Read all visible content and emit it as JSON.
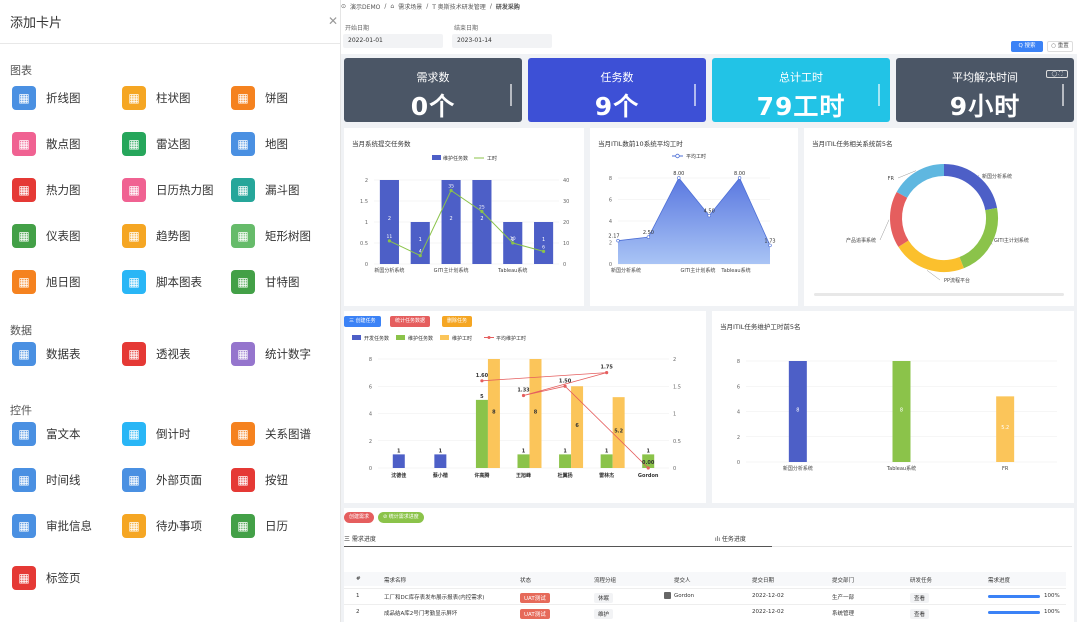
{
  "left_panel": {
    "title": "添加卡片",
    "sections": [
      {
        "title": "图表",
        "items": [
          {
            "label": "折线图",
            "icon": "line-chart-icon",
            "color": "#4a90e2"
          },
          {
            "label": "柱状图",
            "icon": "bar-chart-icon",
            "color": "#f5a623"
          },
          {
            "label": "饼图",
            "icon": "pie-chart-icon",
            "color": "#f5821f"
          },
          {
            "label": "散点图",
            "icon": "scatter-chart-icon",
            "color": "#f06292"
          },
          {
            "label": "雷达图",
            "icon": "radar-chart-icon",
            "color": "#26a65b"
          },
          {
            "label": "地图",
            "icon": "map-icon",
            "color": "#4a90e2"
          },
          {
            "label": "热力图",
            "icon": "heatmap-icon",
            "color": "#e53935"
          },
          {
            "label": "日历热力图",
            "icon": "calendar-heatmap-icon",
            "color": "#f06292"
          },
          {
            "label": "漏斗图",
            "icon": "funnel-icon",
            "color": "#26a69a"
          },
          {
            "label": "仪表图",
            "icon": "gauge-icon",
            "color": "#43a047"
          },
          {
            "label": "趋势图",
            "icon": "trend-icon",
            "color": "#f5a623"
          },
          {
            "label": "矩形树图",
            "icon": "treemap-icon",
            "color": "#66bb6a"
          },
          {
            "label": "旭日图",
            "icon": "sunburst-icon",
            "color": "#f5821f"
          },
          {
            "label": "脚本图表",
            "icon": "script-chart-icon",
            "color": "#29b6f6"
          },
          {
            "label": "甘特图",
            "icon": "gantt-icon",
            "color": "#43a047"
          }
        ]
      },
      {
        "title": "数据",
        "items": [
          {
            "label": "数据表",
            "icon": "data-table-icon",
            "color": "#4a90e2"
          },
          {
            "label": "透视表",
            "icon": "pivot-table-icon",
            "color": "#e53935"
          },
          {
            "label": "统计数字",
            "icon": "statistic-number-icon",
            "color": "#9575cd"
          }
        ]
      },
      {
        "title": "控件",
        "items": [
          {
            "label": "富文本",
            "icon": "rich-text-icon",
            "color": "#4a90e2"
          },
          {
            "label": "倒计时",
            "icon": "countdown-icon",
            "color": "#29b6f6"
          },
          {
            "label": "关系图谱",
            "icon": "relation-graph-icon",
            "color": "#f5821f"
          },
          {
            "label": "时间线",
            "icon": "timeline-icon",
            "color": "#4a90e2"
          },
          {
            "label": "外部页面",
            "icon": "external-page-icon",
            "color": "#4a90e2"
          },
          {
            "label": "按钮",
            "icon": "button-icon",
            "color": "#e53935"
          },
          {
            "label": "审批信息",
            "icon": "approval-icon",
            "color": "#4a90e2"
          },
          {
            "label": "待办事项",
            "icon": "todo-icon",
            "color": "#f5a623"
          },
          {
            "label": "日历",
            "icon": "calendar-icon",
            "color": "#43a047"
          },
          {
            "label": "标签页",
            "icon": "tabs-icon",
            "color": "#e53935"
          }
        ]
      }
    ]
  },
  "breadcrumb": [
    "演示DEMO",
    "需求场景",
    "T 奥斯技术研发管理",
    "研发采购"
  ],
  "filters": {
    "start_label": "开始日期",
    "start_value": "2022-01-01",
    "end_label": "结束日期",
    "end_value": "2023-01-14",
    "search_label": "Q 搜索",
    "reset_label": "○ 重置"
  },
  "stats": [
    {
      "title": "需求数",
      "value": "0个",
      "color": "#4b5666"
    },
    {
      "title": "任务数",
      "value": "9个",
      "color": "#3d50d6"
    },
    {
      "title": "总计工时",
      "value": "79工时",
      "color": "#22c3e6"
    },
    {
      "title": "平均解决时间",
      "value": "9小时",
      "color": "#4b5666"
    }
  ],
  "chart_data": [
    {
      "type": "bar",
      "title": "当月系统提交任务数",
      "categories": [
        "新国分析系统",
        "",
        "GITI主计划系统",
        "",
        "Tableau系统",
        ""
      ],
      "series": [
        {
          "name": "维护任务数",
          "values": [
            2,
            1,
            2,
            2,
            1,
            1
          ],
          "color": "#4d5fc7"
        },
        {
          "name": "工时",
          "values": [
            11,
            4,
            35,
            25,
            10,
            6
          ],
          "color": "#8bc34a",
          "axis": "right"
        }
      ],
      "ylim": [
        0,
        2
      ],
      "y2lim": [
        0,
        40
      ],
      "bar_labels": [
        "2",
        "1",
        "2",
        "2",
        "1",
        "1"
      ],
      "line_labels": [
        "11",
        "4",
        "35",
        "25",
        "10",
        "6"
      ]
    },
    {
      "type": "area",
      "title": "当月ITIL数前10系统平均工时",
      "legend": "平均工时",
      "categories": [
        "新国分析系统",
        "GITI主计划系统",
        "Tableau系统"
      ],
      "x_points": [
        "",
        "",
        "",
        "",
        "",
        ""
      ],
      "values": [
        2.17,
        2.5,
        8.0,
        4.5,
        8.0,
        1.73
      ],
      "labels": [
        "2.17",
        "2.50",
        "8.00",
        "4.50",
        "8.00",
        "1.73"
      ],
      "ylim": [
        0,
        8
      ]
    },
    {
      "type": "pie",
      "title": "当月ITIL任务相关系统前5名",
      "slices": [
        {
          "name": "新国分析系统",
          "value": 22,
          "color": "#4d5fc7"
        },
        {
          "name": "GITI主计划系统",
          "value": 22,
          "color": "#8bc34a"
        },
        {
          "name": "PP流程平台",
          "value": 22,
          "color": "#fbc02d"
        },
        {
          "name": "产品追事系统",
          "value": 17,
          "color": "#e55e5e"
        },
        {
          "name": "FR",
          "value": 17,
          "color": "#5fb7e0"
        }
      ]
    },
    {
      "type": "bar",
      "title": "",
      "legend": [
        "开发任务数",
        "维护任务数",
        "维护工时",
        "平均维护工时"
      ],
      "categories": [
        "沈德佳",
        "蔡小楷",
        "许高腾",
        "王旭峰",
        "杜翼扬",
        "雷林杰",
        "Gordon"
      ],
      "series": [
        {
          "name": "开发任务数",
          "values": [
            1,
            1,
            0,
            0,
            0,
            0,
            0
          ],
          "color": "#4d5fc7"
        },
        {
          "name": "维护任务数",
          "values": [
            0,
            0,
            5,
            1,
            1,
            1,
            1
          ],
          "color": "#8bc34a"
        },
        {
          "name": "维护工时",
          "values": [
            0,
            0,
            8,
            8,
            6,
            5.2,
            0
          ],
          "color": "#fbc55a"
        },
        {
          "name": "平均维护工时",
          "values": [
            null,
            null,
            1.6,
            1.33,
            1.5,
            1.75,
            0
          ],
          "color": "#e55e5e",
          "axis": "right"
        }
      ],
      "ylim": [
        0,
        8
      ],
      "y2lim": [
        0,
        2
      ],
      "labels": {
        "dev": [
          "1",
          "1"
        ],
        "maint": [
          "5",
          "1",
          "1",
          "1",
          "1"
        ],
        "hours": [
          "8",
          "8",
          "6",
          "5.2"
        ],
        "avg": [
          "1.60",
          "1.33",
          "1.50",
          "1.75",
          "0.00"
        ]
      }
    },
    {
      "type": "bar",
      "title": "当月ITIL任务维护工时前5名",
      "categories": [
        "新国分析系统",
        "Tableau系统",
        "FR"
      ],
      "values": [
        8,
        8,
        5.2
      ],
      "colors": [
        "#4d5fc7",
        "#8bc34a",
        "#fbc55a"
      ],
      "labels": [
        "8",
        "8",
        "5.2"
      ],
      "ylim": [
        0,
        8
      ]
    }
  ],
  "task_buttons": [
    "三 创建任务",
    "统计任务数据",
    "删除任务"
  ],
  "demand_buttons": [
    "创建需求",
    "⊘ 统计需求进度"
  ],
  "table_tabs": [
    "三 需求进度",
    "ılı 任务进度"
  ],
  "table": {
    "headers": [
      "#",
      "需求名称",
      "状态",
      "流程分组",
      "提交人",
      "提交日期",
      "提交部门",
      "研发任务",
      "需求进度"
    ],
    "rows": [
      {
        "num": "1",
        "name": "工厂和DC库存表发布展示报表(内控需求)",
        "status": "UAT测试",
        "group": "休眠",
        "submitter": "Gordon",
        "date": "2022-12-02",
        "dept": "生产一部",
        "task": "查看",
        "progress": "100%"
      },
      {
        "num": "2",
        "name": "成品结A库2号门考勤显示屏坏",
        "status": "UAT测试",
        "group": "维护",
        "submitter": "",
        "date": "2022-12-02",
        "dept": "系统管理",
        "task": "查看",
        "progress": "100%"
      }
    ]
  }
}
